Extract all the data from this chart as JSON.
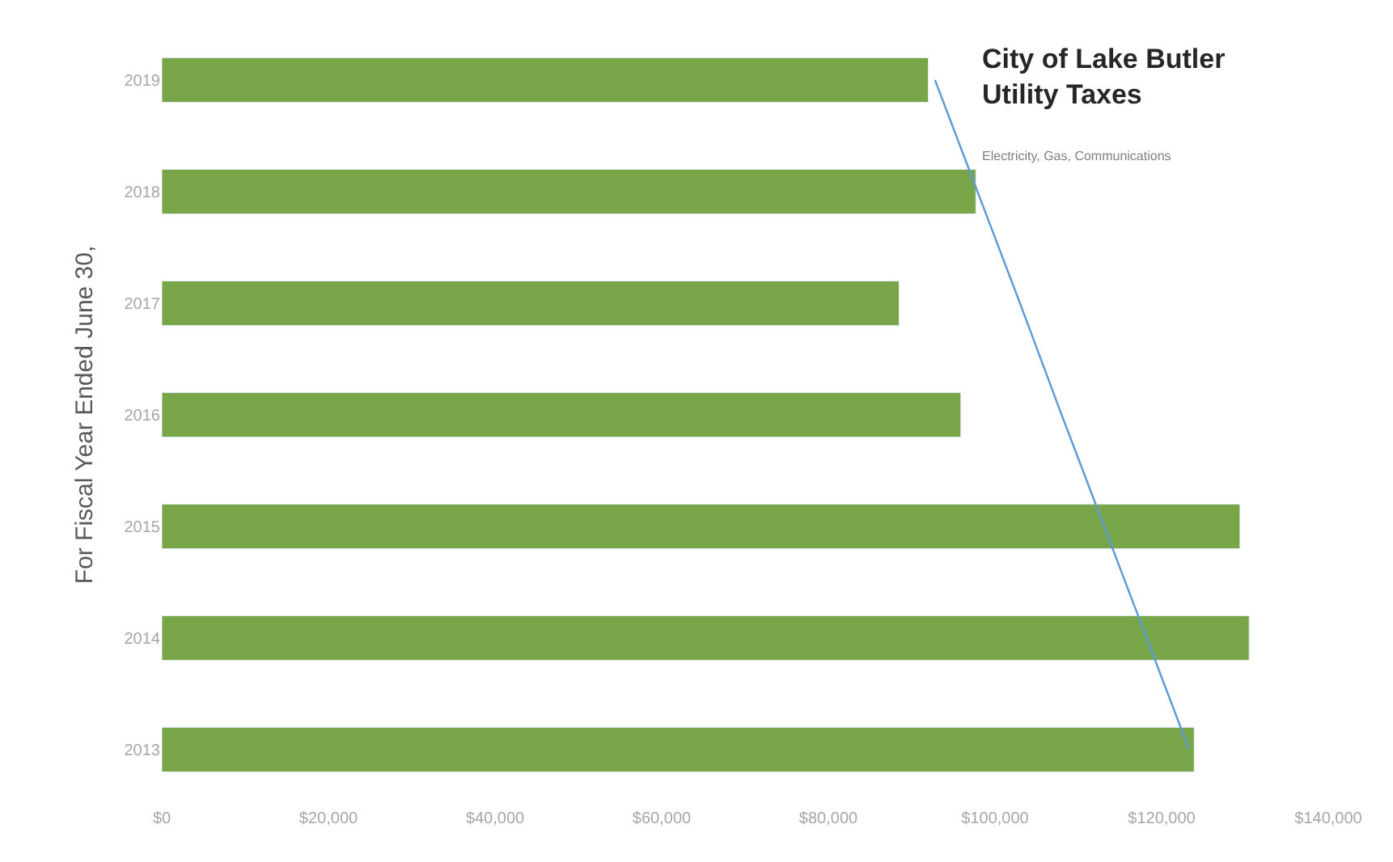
{
  "chart_data": {
    "type": "bar",
    "orientation": "horizontal",
    "title": "City of Lake Butler\nUtility Taxes",
    "subtitle": "Electricity, Gas, Communications",
    "ylabel": "For Fiscal Year Ended June 30,",
    "categories": [
      "2019",
      "2018",
      "2017",
      "2016",
      "2015",
      "2014",
      "2013"
    ],
    "series": [
      {
        "color": "#77a548",
        "values": [
          92000,
          97700,
          88500,
          95900,
          129400,
          130500,
          123900
        ]
      },
      {
        "type": "line",
        "color": "#5b9bd5",
        "values": [
          92800,
          97900,
          103000,
          108000,
          113100,
          118200,
          123300
        ]
      }
    ],
    "xlim": [
      0,
      140000
    ],
    "xticks": [
      {
        "value": 0,
        "label": "$0"
      },
      {
        "value": 20000,
        "label": "$20,000"
      },
      {
        "value": 40000,
        "label": "$40,000"
      },
      {
        "value": 60000,
        "label": "$60,000"
      },
      {
        "value": 80000,
        "label": "$80,000"
      },
      {
        "value": 100000,
        "label": "$100,000"
      },
      {
        "value": 120000,
        "label": "$120,000"
      },
      {
        "value": 140000,
        "label": "$140,000"
      }
    ]
  }
}
